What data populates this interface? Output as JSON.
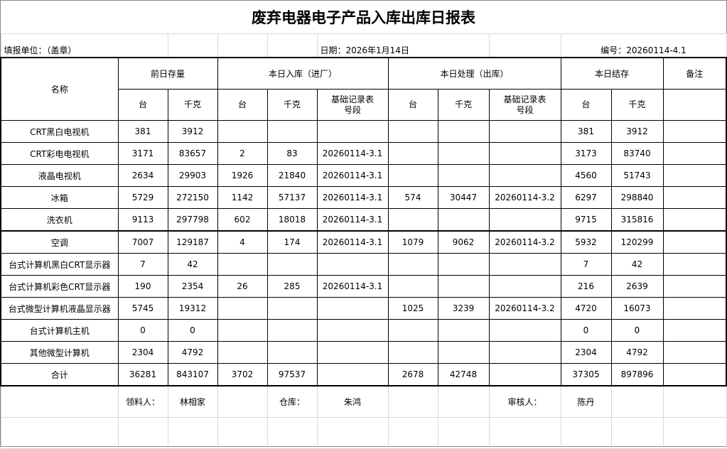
{
  "title": "废弃电器电子产品入库出库日报表",
  "info": {
    "unit": "填报单位：（盖章）",
    "date": "日期：2026年1月14日",
    "number": "编号：20260114-4.1"
  },
  "headers": {
    "name": "名称",
    "prev_stock": "前日存量",
    "in_today": "本日入库（进厂）",
    "out_today": "本日处理（出库）",
    "stock_today": "本日结存",
    "remark": "备注",
    "unit_count": "台",
    "unit_kg": "千克",
    "record_line1": "基础记录表",
    "record_line2": "号段"
  },
  "rows": [
    [
      "CRT黑白电视机",
      "381",
      "3912",
      "",
      "",
      "",
      "",
      "",
      "",
      "381",
      "3912",
      ""
    ],
    [
      "CRT彩电电视机",
      "3171",
      "83657",
      "2",
      "83",
      "20260114-3.1",
      "",
      "",
      "",
      "3173",
      "83740",
      ""
    ],
    [
      "液晶电视机",
      "2634",
      "29903",
      "1926",
      "21840",
      "20260114-3.1",
      "",
      "",
      "",
      "4560",
      "51743",
      ""
    ],
    [
      "冰箱",
      "5729",
      "272150",
      "1142",
      "57137",
      "20260114-3.1",
      "574",
      "30447",
      "20260114-3.2",
      "6297",
      "298840",
      ""
    ],
    [
      "洗衣机",
      "9113",
      "297798",
      "602",
      "18018",
      "20260114-3.1",
      "",
      "",
      "",
      "9715",
      "315816",
      ""
    ],
    [
      "空调",
      "7007",
      "129187",
      "4",
      "174",
      "20260114-3.1",
      "1079",
      "9062",
      "20260114-3.2",
      "5932",
      "120299",
      ""
    ],
    [
      "台式计算机黑白CRT显示器",
      "7",
      "42",
      "",
      "",
      "",
      "",
      "",
      "",
      "7",
      "42",
      ""
    ],
    [
      "台式计算机彩色CRT显示器",
      "190",
      "2354",
      "26",
      "285",
      "20260114-3.1",
      "",
      "",
      "",
      "216",
      "2639",
      ""
    ],
    [
      "台式微型计算机液晶显示器",
      "5745",
      "19312",
      "",
      "",
      "",
      "1025",
      "3239",
      "20260114-3.2",
      "4720",
      "16073",
      ""
    ],
    [
      "台式计算机主机",
      "0",
      "0",
      "",
      "",
      "",
      "",
      "",
      "",
      "0",
      "0",
      ""
    ],
    [
      "其他微型计算机",
      "2304",
      "4792",
      "",
      "",
      "",
      "",
      "",
      "",
      "2304",
      "4792",
      ""
    ],
    [
      "合计",
      "36281",
      "843107",
      "3702",
      "97537",
      "",
      "2678",
      "42748",
      "",
      "37305",
      "897896",
      ""
    ]
  ],
  "footer": {
    "receiver_label": "领料人：",
    "receiver": "林相家",
    "warehouse_label": "仓库：",
    "warehouse": "朱鸿",
    "reviewer_label": "审核人：",
    "reviewer": "陈丹"
  }
}
